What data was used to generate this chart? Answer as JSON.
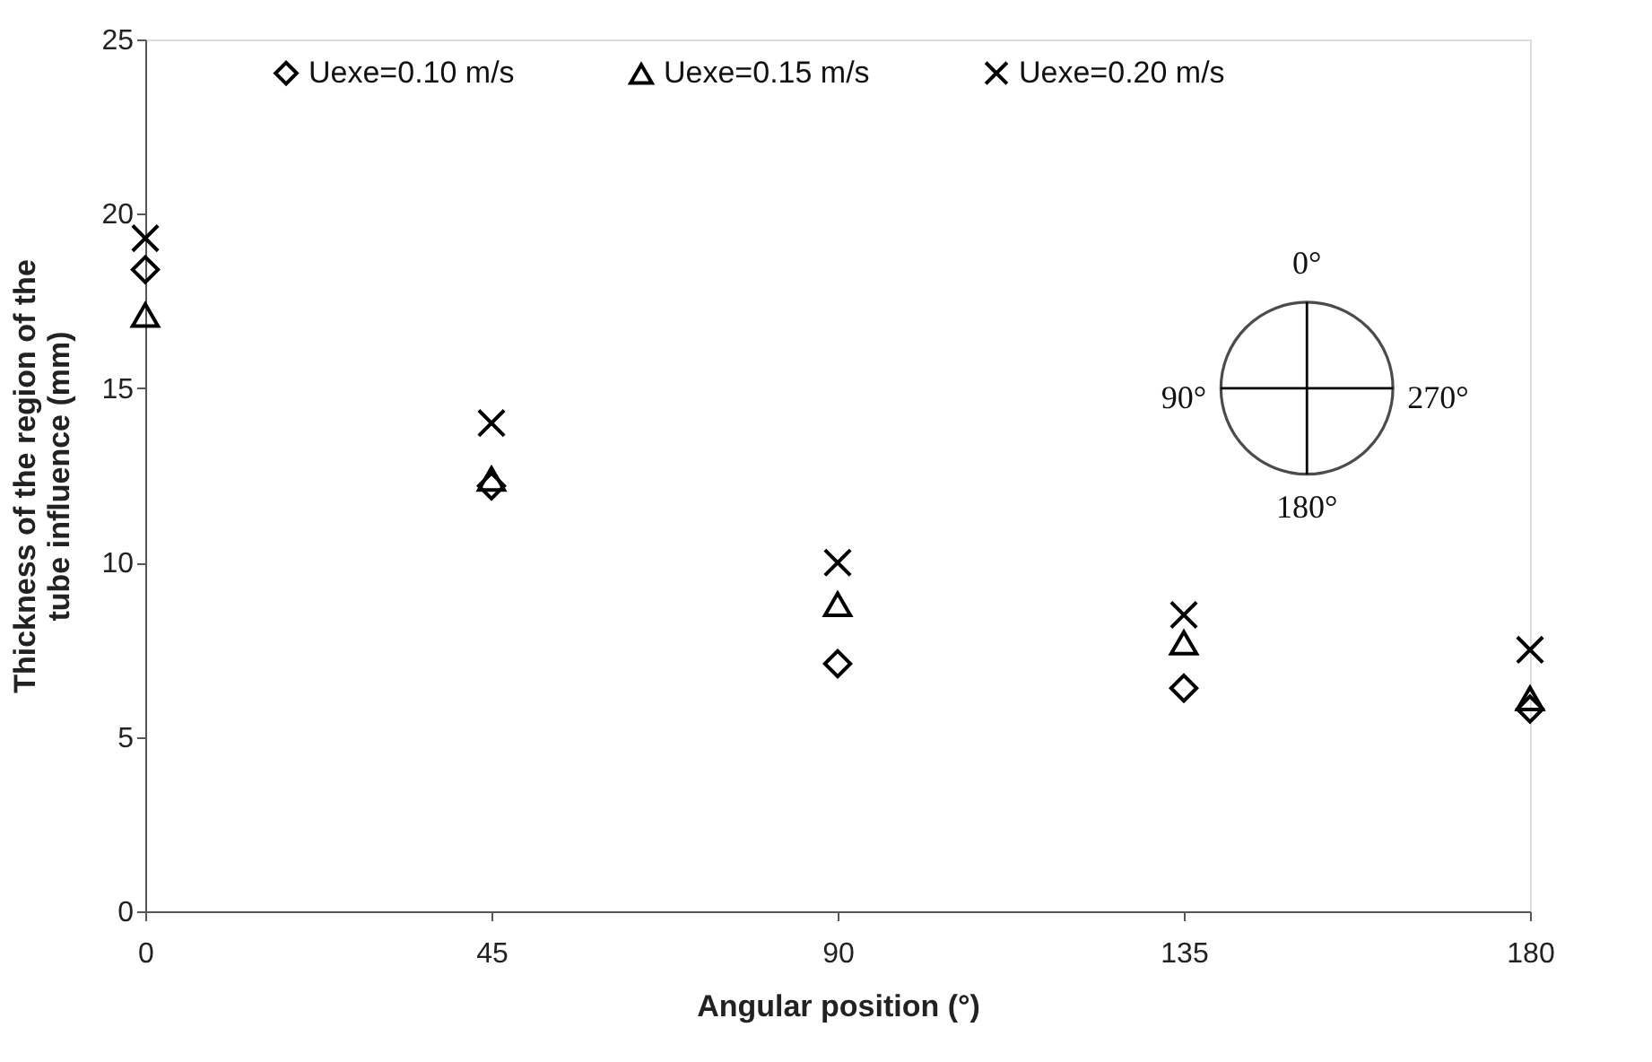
{
  "chart_data": {
    "type": "scatter",
    "xlabel": "Angular position (°)",
    "ylabel": "Thickness of the region of the tube influence (mm)",
    "x": [
      0,
      45,
      90,
      135,
      180
    ],
    "series": [
      {
        "name": "Uexe=0.10 m/s",
        "color": "#000000",
        "marker": "diamond",
        "values": [
          18.4,
          12.2,
          7.1,
          6.4,
          5.8
        ]
      },
      {
        "name": "Uexe=0.15 m/s",
        "color": "#000000",
        "marker": "triangle",
        "values": [
          17.1,
          12.4,
          8.8,
          7.7,
          6.1
        ]
      },
      {
        "name": "Uexe=0.20 m/s",
        "color": "#000000",
        "marker": "cross",
        "values": [
          19.3,
          14.0,
          10.0,
          8.5,
          7.5
        ]
      }
    ],
    "xlim": [
      0,
      180
    ],
    "xticks": [
      0,
      45,
      90,
      135,
      180
    ],
    "ylim": [
      0,
      25
    ],
    "yticks": [
      0,
      5,
      10,
      15,
      20,
      25
    ],
    "grid": false,
    "legend": "top",
    "annotations": [
      "0°",
      "90°",
      "270°",
      "180°"
    ]
  }
}
